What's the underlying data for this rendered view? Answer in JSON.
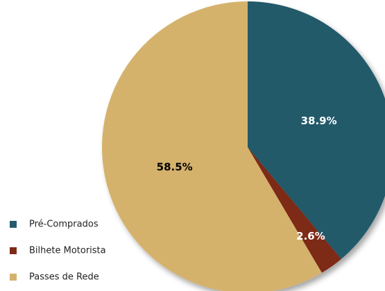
{
  "chart_data": {
    "type": "pie",
    "categories": [
      "Pré-Comprados",
      "Bilhete Motorista",
      "Passes de Rede"
    ],
    "values": [
      38.9,
      2.6,
      58.5
    ],
    "value_labels": [
      "38.9%",
      "2.6%",
      "58.5%"
    ],
    "colors": [
      "#245a6b",
      "#7d2b17",
      "#d5b26c"
    ],
    "label_colors": [
      "#ffffff",
      "#ffffff",
      "#000000"
    ],
    "legend": "bottom-left"
  }
}
